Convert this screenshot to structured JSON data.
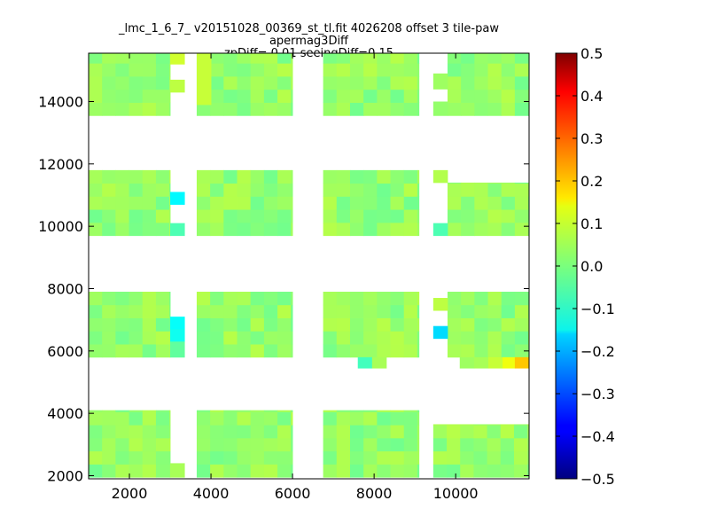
{
  "chart_data": {
    "type": "heatmap",
    "title": "_lmc_1_6_7_ v20151028_00369_st_tl.fit 4026208 offset 3 tile-paw apermag3Diff",
    "subtitle": "zpDiff= 0.01 seeingDiff=0.15",
    "xlabel": "",
    "ylabel": "",
    "xlim": [
      1000,
      11800
    ],
    "ylim": [
      1900,
      15550
    ],
    "x_ticks": [
      "2000",
      "4000",
      "6000",
      "8000",
      "10000"
    ],
    "y_ticks": [
      "2000",
      "4000",
      "6000",
      "8000",
      "10000",
      "12000",
      "14000"
    ],
    "colorbar": {
      "range": [
        -0.5,
        0.5
      ],
      "ticks": [
        "0.5",
        "0.4",
        "0.3",
        "0.2",
        "0.1",
        "0.0",
        "−0.1",
        "−0.2",
        "−0.3",
        "−0.4",
        "−0.5"
      ],
      "colormap": "jet"
    },
    "background_value": 0.02,
    "cell_size": [
      330,
      420
    ],
    "blocks": [
      {
        "name": "row1-col1",
        "x": [
          1000,
          3000
        ],
        "y": [
          1950,
          4100
        ]
      },
      {
        "name": "row1-col2",
        "x": [
          3650,
          6000
        ],
        "y": [
          1950,
          4100
        ]
      },
      {
        "name": "row1-col3",
        "x": [
          6750,
          9100
        ],
        "y": [
          1950,
          4100
        ]
      },
      {
        "name": "row1-col4",
        "x": [
          9450,
          11800
        ],
        "y": [
          1950,
          3650
        ]
      },
      {
        "name": "row2-col1",
        "x": [
          1000,
          3000
        ],
        "y": [
          5800,
          7900
        ]
      },
      {
        "name": "row2-col2",
        "x": [
          3650,
          6000
        ],
        "y": [
          5800,
          7900
        ]
      },
      {
        "name": "row2-col3",
        "x": [
          6750,
          9100
        ],
        "y": [
          5800,
          7900
        ]
      },
      {
        "name": "row2-col4",
        "x": [
          9800,
          11800
        ],
        "y": [
          5800,
          7900
        ]
      },
      {
        "name": "row3-col1",
        "x": [
          1000,
          3000
        ],
        "y": [
          9700,
          11800
        ]
      },
      {
        "name": "row3-col2",
        "x": [
          3650,
          6000
        ],
        "y": [
          9700,
          11800
        ]
      },
      {
        "name": "row3-col3",
        "x": [
          6750,
          9100
        ],
        "y": [
          9700,
          11800
        ]
      },
      {
        "name": "row3-col4",
        "x": [
          9800,
          11800
        ],
        "y": [
          9700,
          11400
        ]
      },
      {
        "name": "row4-col1",
        "x": [
          1000,
          3000
        ],
        "y": [
          13550,
          15550
        ]
      },
      {
        "name": "row4-col2",
        "x": [
          3650,
          6000
        ],
        "y": [
          13550,
          15550
        ]
      },
      {
        "name": "row4-col3",
        "x": [
          6750,
          9100
        ],
        "y": [
          13550,
          15550
        ]
      },
      {
        "name": "row4-col4",
        "x": [
          9800,
          11800
        ],
        "y": [
          13550,
          15550
        ]
      }
    ],
    "extra_cells": [
      {
        "x": [
          3000,
          3350
        ],
        "y": [
          15200,
          15550
        ],
        "v": 0.08
      },
      {
        "x": [
          3000,
          3350
        ],
        "y": [
          14300,
          14700
        ],
        "v": 0.06
      },
      {
        "x": [
          3650,
          4000
        ],
        "y": [
          13900,
          15550
        ],
        "v": 0.07
      },
      {
        "x": [
          3000,
          3350
        ],
        "y": [
          10700,
          11100
        ],
        "v": -0.13
      },
      {
        "x": [
          3000,
          3350
        ],
        "y": [
          9700,
          10100
        ],
        "v": -0.05
      },
      {
        "x": [
          3000,
          3350
        ],
        "y": [
          6700,
          7100
        ],
        "v": -0.12
      },
      {
        "x": [
          3000,
          3350
        ],
        "y": [
          6300,
          6700
        ],
        "v": -0.11
      },
      {
        "x": [
          3000,
          3350
        ],
        "y": [
          5800,
          6300
        ],
        "v": -0.03
      },
      {
        "x": [
          9450,
          9800
        ],
        "y": [
          14400,
          14900
        ],
        "v": 0.03
      },
      {
        "x": [
          9450,
          9800
        ],
        "y": [
          13550,
          14000
        ],
        "v": 0.02
      },
      {
        "x": [
          9450,
          9800
        ],
        "y": [
          11400,
          11800
        ],
        "v": 0.05
      },
      {
        "x": [
          9450,
          9800
        ],
        "y": [
          9700,
          10100
        ],
        "v": -0.05
      },
      {
        "x": [
          9450,
          9800
        ],
        "y": [
          7300,
          7700
        ],
        "v": 0.06
      },
      {
        "x": [
          9450,
          9800
        ],
        "y": [
          6400,
          6800
        ],
        "v": -0.16
      },
      {
        "x": [
          3000,
          3350
        ],
        "y": [
          1950,
          2400
        ],
        "v": 0.04
      },
      {
        "x": [
          7600,
          7950
        ],
        "y": [
          5450,
          5800
        ],
        "v": -0.06
      },
      {
        "x": [
          7950,
          8300
        ],
        "y": [
          5450,
          5800
        ],
        "v": 0.04
      },
      {
        "x": [
          10100,
          10450
        ],
        "y": [
          5450,
          5800
        ],
        "v": 0.03
      },
      {
        "x": [
          10450,
          10800
        ],
        "y": [
          5450,
          5800
        ],
        "v": 0.04
      },
      {
        "x": [
          10800,
          11150
        ],
        "y": [
          5450,
          5800
        ],
        "v": 0.07
      },
      {
        "x": [
          11150,
          11450
        ],
        "y": [
          5450,
          5800
        ],
        "v": 0.11
      },
      {
        "x": [
          11450,
          11800
        ],
        "y": [
          5450,
          5800
        ],
        "v": 0.18
      }
    ]
  }
}
